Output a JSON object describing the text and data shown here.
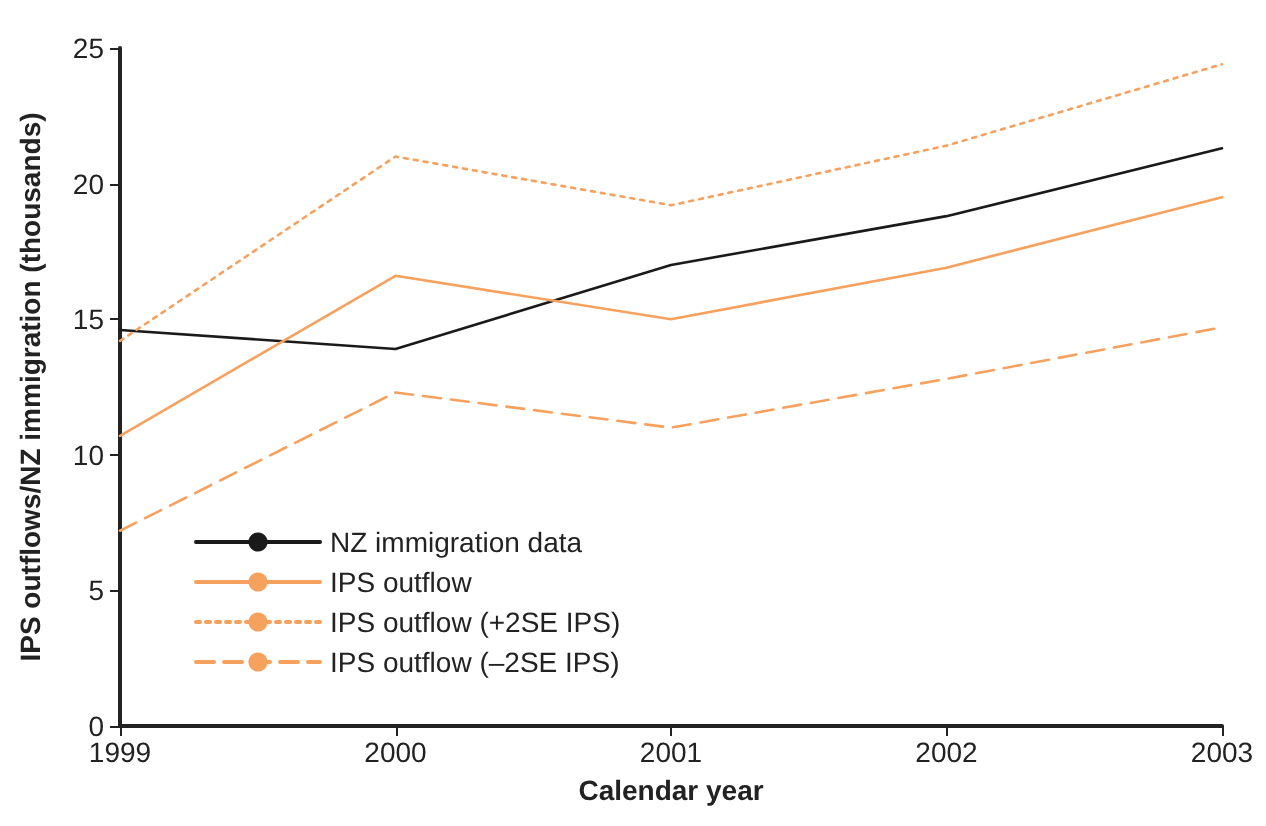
{
  "chart_data": {
    "type": "line",
    "xlabel": "Calendar year",
    "ylabel": "IPS outflows/NZ immigration (thousands)",
    "x": [
      1999,
      2000,
      2001,
      2002,
      2003
    ],
    "xlim": [
      1999,
      2003
    ],
    "xticks": [
      1999,
      2000,
      2001,
      2002,
      2003
    ],
    "ylim": [
      0,
      25
    ],
    "yticks": [
      0,
      5,
      10,
      15,
      20,
      25
    ],
    "grid": false,
    "legend": "bottom left",
    "marker": "none",
    "series": [
      {
        "name": "NZ immigration data",
        "color": "#1a1a1a",
        "line_style": "solid",
        "values": [
          14.6,
          13.9,
          17.0,
          18.8,
          21.3
        ]
      },
      {
        "name": "IPS outflow",
        "color": "#f7a15e",
        "line_style": "solid",
        "values": [
          10.7,
          16.6,
          15.0,
          16.9,
          19.5
        ]
      },
      {
        "name": "IPS outflow (+2SE IPS)",
        "color": "#f7a15e",
        "line_style": "dotted",
        "values": [
          14.2,
          21.0,
          19.2,
          21.4,
          24.4
        ]
      },
      {
        "name": "IPS outflow (–2SE IPS)",
        "color": "#f7a15e",
        "line_style": "dashed",
        "values": [
          7.2,
          12.3,
          11.0,
          12.8,
          14.7
        ]
      }
    ]
  }
}
